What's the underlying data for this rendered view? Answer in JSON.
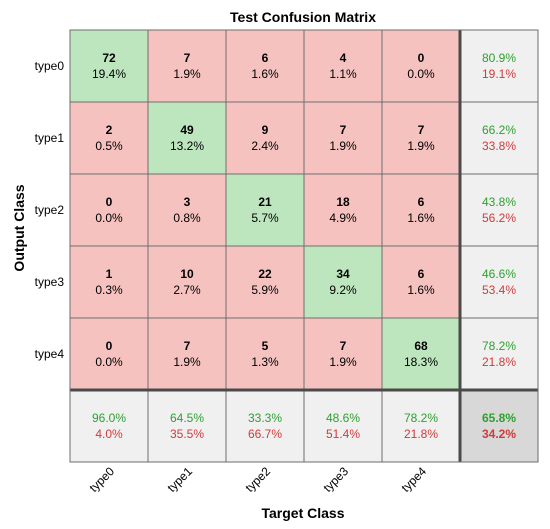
{
  "chart_data": {
    "type": "heatmap",
    "title": "Test Confusion Matrix",
    "xlabel": "Target Class",
    "ylabel": "Output Class",
    "classes": [
      "type0",
      "type1",
      "type2",
      "type3",
      "type4"
    ],
    "matrix": [
      [
        72,
        7,
        6,
        4,
        0
      ],
      [
        2,
        49,
        9,
        7,
        7
      ],
      [
        0,
        3,
        21,
        18,
        6
      ],
      [
        1,
        10,
        22,
        34,
        6
      ],
      [
        0,
        7,
        5,
        7,
        68
      ]
    ],
    "cell_percent": [
      [
        "19.4%",
        "1.9%",
        "1.6%",
        "1.1%",
        "0.0%"
      ],
      [
        "0.5%",
        "13.2%",
        "2.4%",
        "1.9%",
        "1.9%"
      ],
      [
        "0.0%",
        "0.8%",
        "5.7%",
        "4.9%",
        "1.6%"
      ],
      [
        "0.3%",
        "2.7%",
        "5.9%",
        "9.2%",
        "1.6%"
      ],
      [
        "0.0%",
        "1.9%",
        "1.3%",
        "1.9%",
        "18.3%"
      ]
    ],
    "row_summary": [
      {
        "correct": "80.9%",
        "incorrect": "19.1%"
      },
      {
        "correct": "66.2%",
        "incorrect": "33.8%"
      },
      {
        "correct": "43.8%",
        "incorrect": "56.2%"
      },
      {
        "correct": "46.6%",
        "incorrect": "53.4%"
      },
      {
        "correct": "78.2%",
        "incorrect": "21.8%"
      }
    ],
    "col_summary": [
      {
        "correct": "96.0%",
        "incorrect": "4.0%"
      },
      {
        "correct": "64.5%",
        "incorrect": "35.5%"
      },
      {
        "correct": "33.3%",
        "incorrect": "66.7%"
      },
      {
        "correct": "48.6%",
        "incorrect": "51.4%"
      },
      {
        "correct": "78.2%",
        "incorrect": "21.8%"
      }
    ],
    "overall": {
      "correct": "65.8%",
      "incorrect": "34.2%"
    },
    "colors": {
      "diagonal": "#bde6bf",
      "off_diagonal": "#f5c2c0",
      "summary": "#f0f0f0",
      "overall": "#d8d8d8",
      "correct_text": "#2fa02f",
      "incorrect_text": "#d03b3b",
      "grid": "#6e6e6e",
      "divider": "#4a4a4a"
    }
  }
}
